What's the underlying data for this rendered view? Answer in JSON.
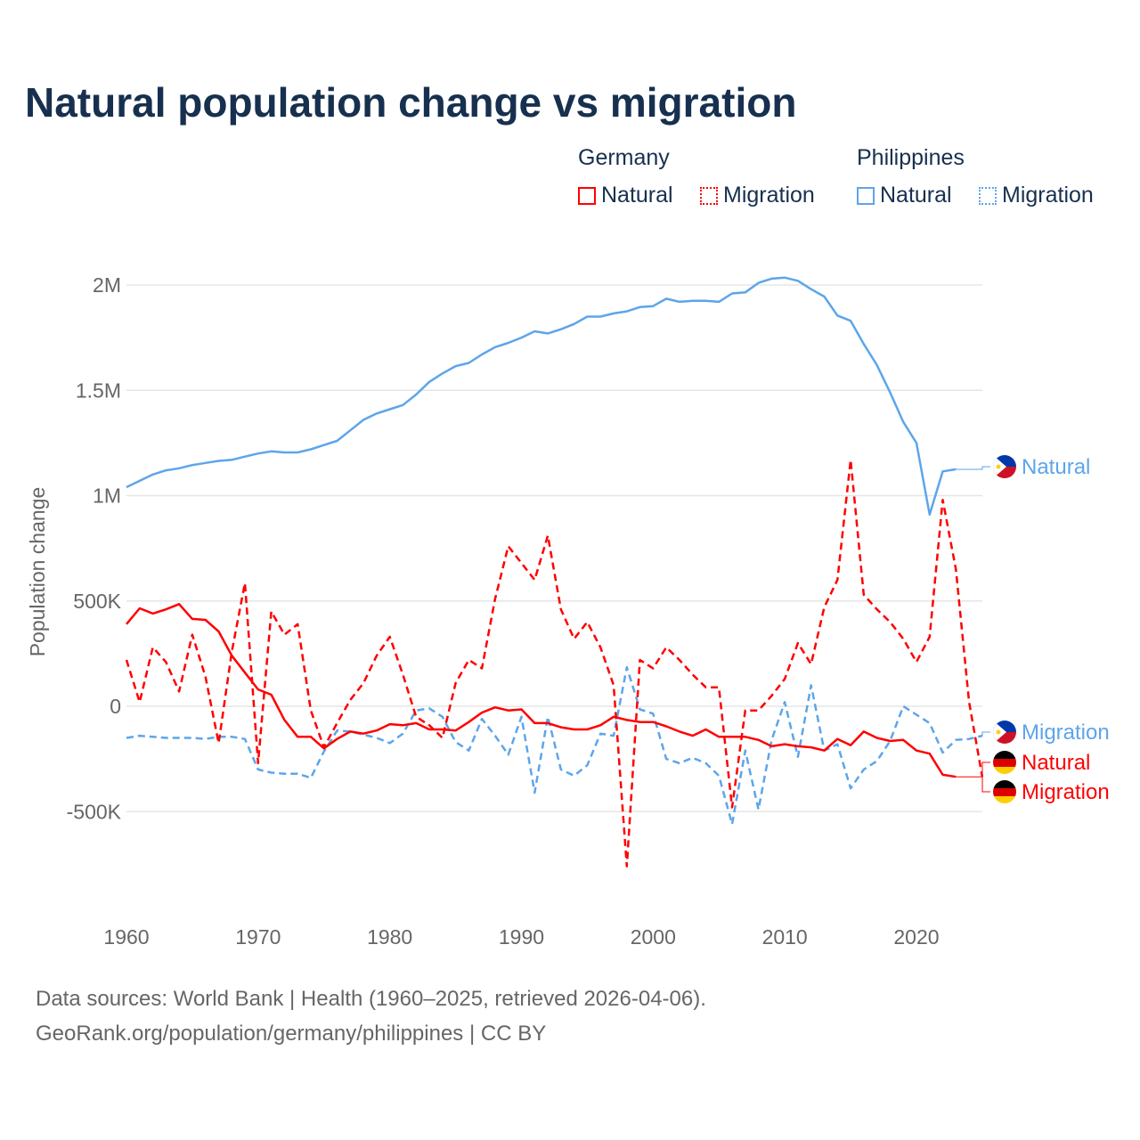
{
  "title": "Natural population change vs migration",
  "legend": {
    "groups": [
      {
        "name": "Germany",
        "items": [
          {
            "label": "Natural",
            "style": "solid"
          },
          {
            "label": "Migration",
            "style": "dotted"
          }
        ],
        "color": "#ff0000"
      },
      {
        "name": "Philippines",
        "items": [
          {
            "label": "Natural",
            "style": "solid"
          },
          {
            "label": "Migration",
            "style": "dotted"
          }
        ],
        "color": "#5da5ea"
      }
    ]
  },
  "source": {
    "line1": "Data sources: World Bank | Health (1960–2025, retrieved 2026-04-06).",
    "line2": "GeoRank.org/population/germany/philippines | CC BY"
  },
  "chart_data": {
    "type": "line",
    "title": "Natural population change vs migration",
    "xlabel": "",
    "ylabel": "Population change",
    "xlim": [
      1960,
      2025
    ],
    "ylim": [
      -1000000,
      2200000
    ],
    "x_ticks": [
      1960,
      1970,
      1980,
      1990,
      2000,
      2010,
      2020
    ],
    "y_ticks": [
      {
        "v": -500000,
        "label": "-500K"
      },
      {
        "v": 0,
        "label": "0"
      },
      {
        "v": 500000,
        "label": "500K"
      },
      {
        "v": 1000000,
        "label": "1M"
      },
      {
        "v": 1500000,
        "label": "1.5M"
      },
      {
        "v": 2000000,
        "label": "2M"
      }
    ],
    "grid": true,
    "start_year": 1960,
    "series": [
      {
        "name": "Philippines Natural",
        "end_label": "Natural",
        "country": "philippines",
        "color": "#5da5ea",
        "dash": false,
        "unit": "K",
        "values": [
          1040,
          1070,
          1100,
          1120,
          1130,
          1145,
          1155,
          1165,
          1170,
          1185,
          1200,
          1210,
          1205,
          1205,
          1220,
          1240,
          1260,
          1310,
          1360,
          1390,
          1410,
          1430,
          1480,
          1540,
          1580,
          1615,
          1630,
          1670,
          1705,
          1725,
          1750,
          1780,
          1770,
          1790,
          1815,
          1850,
          1850,
          1865,
          1875,
          1895,
          1900,
          1935,
          1920,
          1925,
          1925,
          1920,
          1960,
          1965,
          2010,
          2030,
          2035,
          2020,
          1980,
          1945,
          1855,
          1830,
          1720,
          1620,
          1490,
          1350,
          1250,
          910,
          1115,
          1125
        ]
      },
      {
        "name": "Philippines Migration",
        "end_label": "Migration",
        "country": "philippines",
        "color": "#5da5ea",
        "dash": true,
        "unit": "K",
        "values": [
          -150,
          -140,
          -145,
          -150,
          -150,
          -150,
          -155,
          -145,
          -145,
          -155,
          -300,
          -315,
          -320,
          -320,
          -340,
          -215,
          -115,
          -120,
          -135,
          -150,
          -175,
          -130,
          -20,
          -10,
          -50,
          -170,
          -210,
          -60,
          -140,
          -230,
          -50,
          -410,
          -50,
          -300,
          -330,
          -280,
          -130,
          -140,
          185,
          -15,
          -35,
          -250,
          -270,
          -245,
          -270,
          -330,
          -560,
          -210,
          -490,
          -160,
          20,
          -240,
          100,
          -210,
          -180,
          -390,
          -300,
          -260,
          -165,
          0,
          -40,
          -80,
          -220,
          -160,
          -155,
          -140
        ]
      },
      {
        "name": "Germany Natural",
        "end_label": "Natural",
        "country": "germany",
        "color": "#ff0000",
        "dash": false,
        "unit": "K",
        "values": [
          390,
          465,
          440,
          460,
          485,
          415,
          410,
          355,
          240,
          160,
          80,
          55,
          -65,
          -145,
          -145,
          -200,
          -155,
          -120,
          -130,
          -115,
          -85,
          -90,
          -80,
          -110,
          -110,
          -115,
          -75,
          -30,
          -5,
          -20,
          -15,
          -80,
          -80,
          -100,
          -110,
          -110,
          -90,
          -50,
          -65,
          -75,
          -75,
          -95,
          -120,
          -140,
          -110,
          -145,
          -145,
          -145,
          -160,
          -190,
          -180,
          -190,
          -195,
          -210,
          -155,
          -185,
          -120,
          -150,
          -165,
          -160,
          -210,
          -225,
          -325,
          -335
        ]
      },
      {
        "name": "Germany Migration",
        "end_label": "Migration",
        "country": "germany",
        "color": "#ff0000",
        "dash": true,
        "unit": "K",
        "values": [
          220,
          20,
          280,
          210,
          70,
          340,
          140,
          -175,
          260,
          585,
          -270,
          450,
          340,
          390,
          -20,
          -195,
          -80,
          30,
          110,
          240,
          330,
          150,
          -50,
          -90,
          -150,
          110,
          220,
          180,
          510,
          760,
          680,
          600,
          810,
          460,
          320,
          400,
          280,
          100,
          -760,
          220,
          180,
          280,
          220,
          150,
          90,
          90,
          -480,
          -20,
          -20,
          50,
          130,
          300,
          200,
          470,
          600,
          1170,
          530,
          460,
          400,
          320,
          210,
          330,
          980,
          650,
          20,
          -335
        ]
      }
    ]
  }
}
